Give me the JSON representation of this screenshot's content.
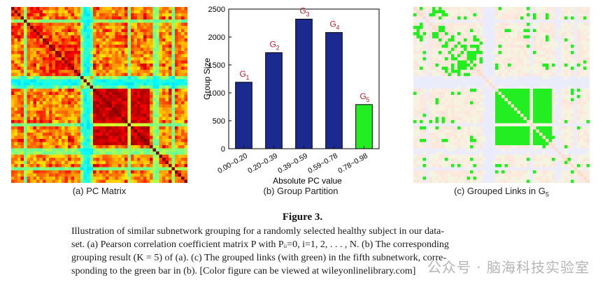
{
  "panels": {
    "a": {
      "caption": "(a) PC Matrix"
    },
    "b": {
      "caption": "(b) Group Partition"
    },
    "c": {
      "caption_prefix": "(c) Grouped Links in G",
      "caption_sub": "5"
    }
  },
  "chart_data": {
    "type": "bar",
    "title": "",
    "xlabel": "Absolute PC value",
    "ylabel": "Group Size",
    "categories": [
      "0.00~0.20",
      "0.20~0.39",
      "0.39~0.59",
      "0.59~0.78",
      "0.78~0.98"
    ],
    "values": [
      1190,
      1720,
      2320,
      2080,
      790
    ],
    "bar_labels": [
      {
        "main": "G",
        "sub": "1"
      },
      {
        "main": "G",
        "sub": "2"
      },
      {
        "main": "G",
        "sub": "3"
      },
      {
        "main": "G",
        "sub": "4"
      },
      {
        "main": "G",
        "sub": "5"
      }
    ],
    "bar_colors": [
      "#1b2a8f",
      "#1b2a8f",
      "#1b2a8f",
      "#1b2a8f",
      "#22ee22"
    ],
    "yticks": [
      0,
      500,
      1000,
      1500,
      2000,
      2500
    ],
    "ylim": [
      0,
      2500
    ]
  },
  "figure": {
    "title": "Figure 3.",
    "lines": [
      "Illustration of similar subnetwork grouping for a randomly selected healthy subject in our data-",
      "set. (a) Pearson correlation coefficient matrix P with Pᵢᵢ=0, i=1, 2, . . . , N. (b) The corresponding",
      "grouping result (K = 5) of (a). (c) The grouped links (with green) in the fifth subnetwork, corre-",
      "sponding to the green bar in (b). [Color figure can be viewed at wileyonlinelibrary.com]"
    ]
  },
  "watermark": "公众号 · 脑海科技实验室"
}
